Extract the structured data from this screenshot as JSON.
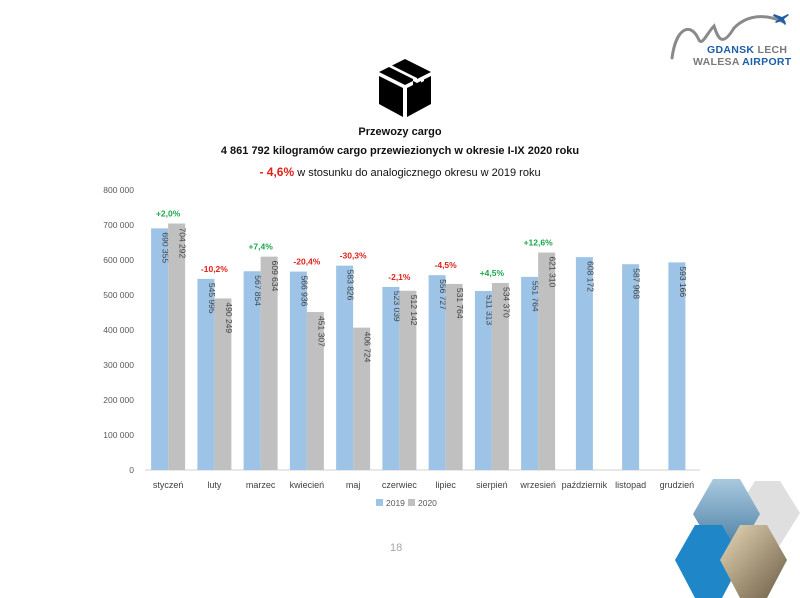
{
  "header": {
    "logo_line1_blue": "GDANSK",
    "logo_line1_gray": " LECH",
    "logo_line2_gray": "WALESA",
    "logo_line2_blue": " AIRPORT"
  },
  "icon": {
    "name": "cargo-box-icon"
  },
  "headline": {
    "title": "Przewozy cargo",
    "total_value": "4 861 792",
    "total_text": "kilogramów cargo przewiezionych w okresie I-IX 2020 roku",
    "change_value": "- 4,6%",
    "change_text": "w stosunku do analogicznego okresu w 2019 roku"
  },
  "page_number": "18",
  "colors": {
    "series_2019": "#9dc3e6",
    "series_2020": "#c0c0c0",
    "positive": "#1aa64b",
    "negative": "#e0201b"
  },
  "chart_data": {
    "type": "bar",
    "categories": [
      "styczeń",
      "luty",
      "marzec",
      "kwiecień",
      "maj",
      "czerwiec",
      "lipiec",
      "sierpień",
      "wrzesień",
      "październik",
      "listopad",
      "grudzień"
    ],
    "series": [
      {
        "name": "2019",
        "values": [
          690355,
          545995,
          567854,
          566936,
          583826,
          523039,
          556727,
          511313,
          551764,
          608172,
          587968,
          593166
        ],
        "labels": [
          "690 355",
          "545 995",
          "567 854",
          "566 936",
          "583 826",
          "523 039",
          "556 727",
          "511 313",
          "551 764",
          "608 172",
          "587 968",
          "593 166"
        ]
      },
      {
        "name": "2020",
        "values": [
          704292,
          490249,
          609634,
          451307,
          406724,
          512142,
          531764,
          534370,
          621310,
          null,
          null,
          null
        ],
        "labels": [
          "704 292",
          "490 249",
          "609 634",
          "451 307",
          "406 724",
          "512 142",
          "531 764",
          "534 370",
          "621 310",
          "",
          "",
          ""
        ]
      }
    ],
    "changes": [
      "+2,0%",
      "-10,2%",
      "+7,4%",
      "-20,4%",
      "-30,3%",
      "-2,1%",
      "-4,5%",
      "+4,5%",
      "+12,6%",
      "",
      "",
      ""
    ],
    "y_ticks": [
      "0",
      "100 000",
      "200 000",
      "300 000",
      "400 000",
      "500 000",
      "600 000",
      "700 000",
      "800 000"
    ],
    "ylim": [
      0,
      800000
    ],
    "xlabel": "",
    "ylabel": "",
    "grid": false,
    "legend_position": "bottom"
  }
}
